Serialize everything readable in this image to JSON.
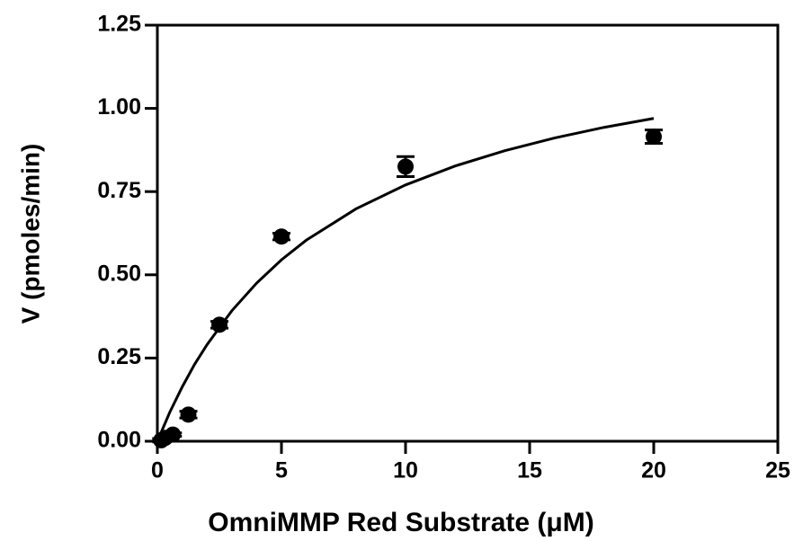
{
  "chart_data": {
    "type": "scatter",
    "xlabel": "OmniMMP Red Substrate (μM)",
    "ylabel": "V (pmoles/min)",
    "x": [
      0.156,
      0.3125,
      0.625,
      1.25,
      2.5,
      5,
      10,
      20
    ],
    "values": [
      0.003,
      0.01,
      0.02,
      0.08,
      0.35,
      0.615,
      0.825,
      0.915
    ],
    "errors": [
      0.005,
      0.005,
      0.005,
      0.01,
      0.01,
      0.01,
      0.03,
      0.02
    ],
    "color": "#000000",
    "fit": {
      "x": [
        0,
        0.5,
        1,
        1.5,
        2,
        3,
        4,
        5,
        6,
        8,
        10,
        12,
        14,
        16,
        18,
        20
      ],
      "values": [
        0,
        0.087,
        0.163,
        0.231,
        0.29,
        0.392,
        0.475,
        0.545,
        0.604,
        0.698,
        0.77,
        0.827,
        0.873,
        0.911,
        0.943,
        0.97
      ]
    },
    "xlim": [
      0,
      25
    ],
    "xticks": [
      0,
      5,
      10,
      15,
      20,
      25
    ],
    "ylim": [
      0,
      1.25
    ],
    "yticks": [
      {
        "value": 0,
        "label": "0.00"
      },
      {
        "value": 0.25,
        "label": "0.25"
      },
      {
        "value": 0.5,
        "label": "0.50"
      },
      {
        "value": 0.75,
        "label": "0.75"
      },
      {
        "value": 1,
        "label": "1.00"
      },
      {
        "value": 1.25,
        "label": "1.25"
      }
    ],
    "grid": false
  }
}
